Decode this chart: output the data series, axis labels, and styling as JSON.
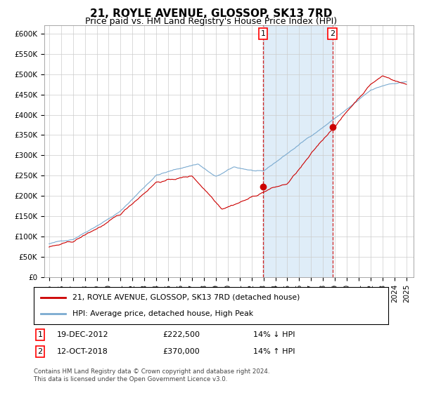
{
  "title": "21, ROYLE AVENUE, GLOSSOP, SK13 7RD",
  "subtitle": "Price paid vs. HM Land Registry's House Price Index (HPI)",
  "legend_line1": "21, ROYLE AVENUE, GLOSSOP, SK13 7RD (detached house)",
  "legend_line2": "HPI: Average price, detached house, High Peak",
  "transaction1_date": "19-DEC-2012",
  "transaction1_price": 222500,
  "transaction1_label": "14% ↓ HPI",
  "transaction2_date": "12-OCT-2018",
  "transaction2_price": 370000,
  "transaction2_label": "14% ↑ HPI",
  "annotation_text": "Contains HM Land Registry data © Crown copyright and database right 2024.\nThis data is licensed under the Open Government Licence v3.0.",
  "ylim": [
    0,
    620000
  ],
  "year_start": 1995,
  "year_end": 2025,
  "hpi_color": "#7aaad0",
  "price_color": "#cc0000",
  "marker_color": "#cc0000",
  "shade_color": "#daeaf7",
  "vline_color": "#cc0000",
  "grid_color": "#cccccc",
  "background_color": "#ffffff",
  "title_fontsize": 11,
  "subtitle_fontsize": 9
}
